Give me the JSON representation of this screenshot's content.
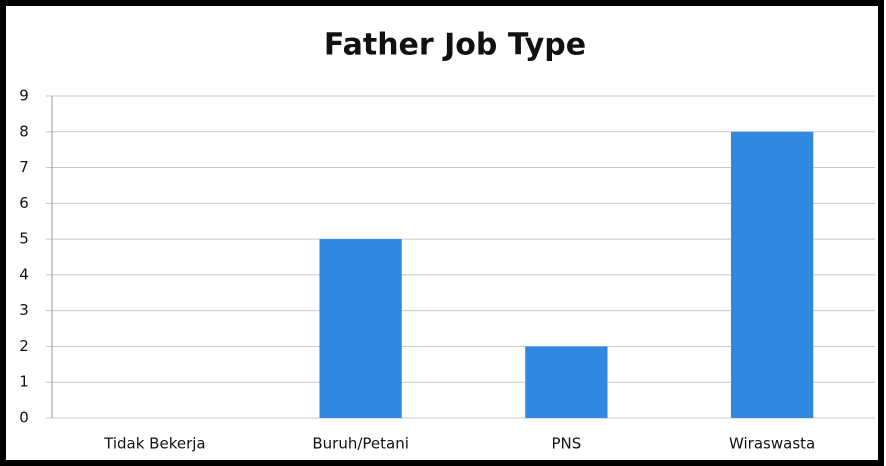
{
  "chart_data": {
    "type": "bar",
    "title": "Father Job Type",
    "categories": [
      "Tidak Bekerja",
      "Buruh/Petani",
      "PNS",
      "Wiraswasta"
    ],
    "values": [
      0,
      5,
      2,
      8
    ],
    "color": "#3089e0",
    "ylim": [
      0,
      9
    ],
    "yticks": [
      0,
      1,
      2,
      3,
      4,
      5,
      6,
      7,
      8,
      9
    ],
    "grid": true
  }
}
